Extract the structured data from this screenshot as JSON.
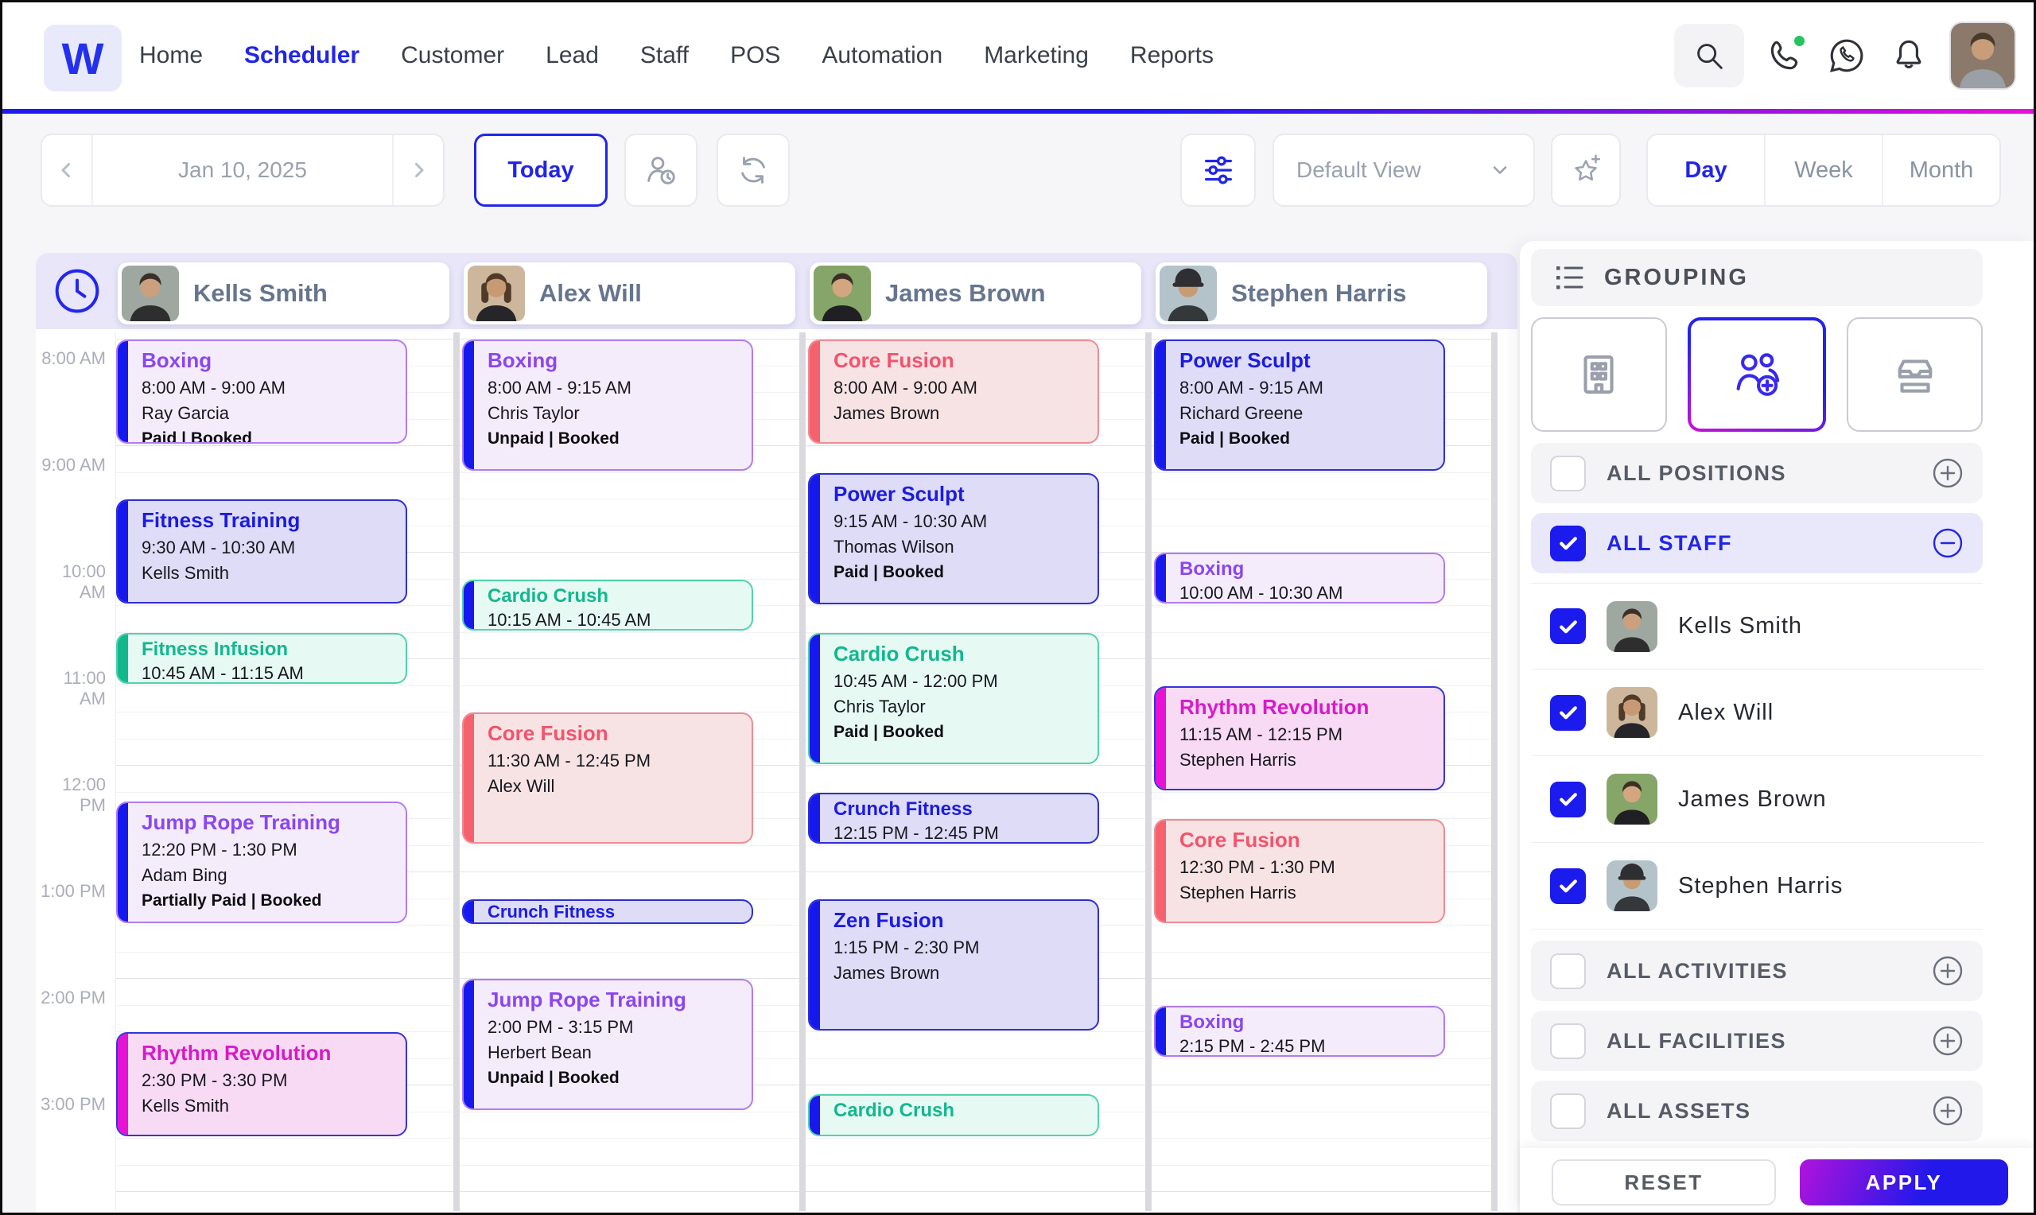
{
  "nav": {
    "logo_letter": "W",
    "items": [
      {
        "label": "Home",
        "active": false
      },
      {
        "label": "Scheduler",
        "active": true
      },
      {
        "label": "Customer",
        "active": false
      },
      {
        "label": "Lead",
        "active": false
      },
      {
        "label": "Staff",
        "active": false
      },
      {
        "label": "POS",
        "active": false
      },
      {
        "label": "Automation",
        "active": false
      },
      {
        "label": "Marketing",
        "active": false
      },
      {
        "label": "Reports",
        "active": false
      }
    ],
    "icons": [
      "search-icon",
      "phone-icon",
      "whatsapp-icon",
      "bell-icon"
    ],
    "accent_color": "#2125ea",
    "underline_gradient": [
      "#1c1cf2",
      "#8414e4",
      "#ec0edc"
    ]
  },
  "toolbar": {
    "date_label": "Jan 10, 2025",
    "today_label": "Today",
    "icon_buttons": [
      "staff-hours-icon",
      "refresh-icon",
      "filter-icon",
      "favorite-view-icon"
    ],
    "view_selector": {
      "value": "Default View"
    },
    "view_modes": [
      {
        "label": "Day",
        "active": true
      },
      {
        "label": "Week",
        "active": false
      },
      {
        "label": "Month",
        "active": false
      }
    ]
  },
  "scheduler": {
    "time_labels": [
      "8:00 AM",
      "9:00 AM",
      "10:00 AM",
      "11:00 AM",
      "12:00 PM",
      "1:00 PM",
      "2:00 PM",
      "3:00 PM"
    ],
    "event_colors": {
      "purple": {
        "bg": "#f5ecfb",
        "border": "#b27cee",
        "title": "#8a46f0",
        "bar": "#1618ee"
      },
      "blue": {
        "bg": "#dedcf6",
        "border": "#2e2ed8",
        "title": "#1b1be2",
        "bar": "#1618ee"
      },
      "teal": {
        "bg": "#e6faf3",
        "border": "#50d3ab",
        "title": "#13b78e",
        "bar": "#1618ee"
      },
      "teal_green": {
        "bg": "#e6faf3",
        "border": "#50d3ab",
        "title": "#13b78e",
        "bar": "#13b78e"
      },
      "red": {
        "bg": "#f7e3e3",
        "border": "#ef8b95",
        "title": "#f3536c",
        "bar": "#f6616e"
      },
      "pink": {
        "bg": "#f8daf4",
        "border": "#3434dc",
        "title": "#d81ac8",
        "bar": "#e612d4"
      }
    },
    "columns": [
      {
        "name": "Kells Smith",
        "avatar": {
          "bg": "#9fa8a0",
          "hair": "#3a3028",
          "skin": "#caa07e",
          "shirt": "#2e2e2e"
        },
        "events": [
          {
            "title": "Boxing",
            "time": "8:00 AM - 9:00 AM",
            "person": "Ray Garcia",
            "status": "Paid | Booked",
            "color": "purple",
            "start_min": 0,
            "dur_min": 60
          },
          {
            "title": "Fitness Training",
            "time": "9:30 AM - 10:30 AM",
            "person": "Kells Smith",
            "status": "",
            "color": "blue",
            "start_min": 90,
            "dur_min": 60
          },
          {
            "title": "Fitness Infusion",
            "time": "10:45 AM - 11:15 AM",
            "person": "",
            "status": "",
            "color": "teal_green",
            "start_min": 165,
            "dur_min": 30
          },
          {
            "title": "Jump Rope Training",
            "time": "12:20 PM - 1:30 PM",
            "person": "Adam Bing",
            "status": "Partially Paid | Booked",
            "color": "purple",
            "start_min": 260,
            "dur_min": 70
          },
          {
            "title": "Rhythm Revolution",
            "time": "2:30 PM - 3:30 PM",
            "person": "Kells Smith",
            "status": "",
            "color": "pink",
            "start_min": 390,
            "dur_min": 60
          }
        ]
      },
      {
        "name": "Alex Will",
        "avatar": {
          "bg": "#cdb79c",
          "hair": "#503a28",
          "skin": "#c89a74",
          "shirt": "#26262a",
          "long_hair": true
        },
        "events": [
          {
            "title": "Boxing",
            "time": "8:00 AM - 9:15 AM",
            "person": "Chris Taylor",
            "status": "Unpaid | Booked",
            "color": "purple",
            "start_min": 0,
            "dur_min": 75
          },
          {
            "title": "Cardio Crush",
            "time": "10:15 AM - 10:45 AM",
            "person": "",
            "status": "",
            "color": "teal",
            "start_min": 135,
            "dur_min": 30
          },
          {
            "title": "Core Fusion",
            "time": "11:30 AM - 12:45 PM",
            "person": "Alex Will",
            "status": "",
            "color": "red",
            "start_min": 210,
            "dur_min": 75
          },
          {
            "title": "Crunch Fitness",
            "time": "",
            "person": "",
            "status": "",
            "color": "blue",
            "start_min": 315,
            "dur_min": 15
          },
          {
            "title": "Jump Rope Training",
            "time": "2:00 PM - 3:15 PM",
            "person": "Herbert Bean",
            "status": "Unpaid | Booked",
            "color": "purple",
            "start_min": 360,
            "dur_min": 75
          }
        ]
      },
      {
        "name": "James Brown",
        "avatar": {
          "bg": "#86a569",
          "hair": "#3c3026",
          "skin": "#d4a67f",
          "shirt": "#202024"
        },
        "events": [
          {
            "title": "Core Fusion",
            "time": "8:00 AM - 9:00 AM",
            "person": "James Brown",
            "status": "",
            "color": "red",
            "start_min": 0,
            "dur_min": 60
          },
          {
            "title": "Power Sculpt",
            "time": "9:15 AM - 10:30 AM",
            "person": "Thomas Wilson",
            "status": "Paid | Booked",
            "color": "blue",
            "start_min": 75,
            "dur_min": 75
          },
          {
            "title": "Cardio Crush",
            "time": "10:45 AM - 12:00 PM",
            "person": "Chris Taylor",
            "status": "Paid | Booked",
            "color": "teal",
            "start_min": 165,
            "dur_min": 75
          },
          {
            "title": "Crunch Fitness",
            "time": "12:15 PM - 12:45 PM",
            "person": "",
            "status": "",
            "color": "blue",
            "start_min": 255,
            "dur_min": 30
          },
          {
            "title": "Zen Fusion",
            "time": "1:15 PM - 2:30 PM",
            "person": "James Brown",
            "status": "",
            "color": "blue",
            "start_min": 315,
            "dur_min": 75
          },
          {
            "title": "Cardio Crush",
            "time": "",
            "person": "",
            "status": "",
            "color": "teal",
            "start_min": 425,
            "dur_min": 25
          }
        ]
      },
      {
        "name": "Stephen Harris",
        "avatar": {
          "bg": "#b4c3c9",
          "hair": "#2f2f33",
          "skin": "#c79b73",
          "shirt": "#34383b",
          "cap": true
        },
        "events": [
          {
            "title": "Power Sculpt",
            "time": "8:00 AM - 9:15 AM",
            "person": "Richard Greene",
            "status": "Paid | Booked",
            "color": "blue",
            "start_min": 0,
            "dur_min": 75
          },
          {
            "title": "Boxing",
            "time": "10:00 AM - 10:30 AM",
            "person": "",
            "status": "",
            "color": "purple",
            "start_min": 120,
            "dur_min": 30
          },
          {
            "title": "Rhythm Revolution",
            "time": "11:15 AM - 12:15 PM",
            "person": "Stephen Harris",
            "status": "",
            "color": "pink",
            "start_min": 195,
            "dur_min": 60
          },
          {
            "title": "Core Fusion",
            "time": "12:30 PM - 1:30 PM",
            "person": "Stephen Harris",
            "status": "",
            "color": "red",
            "start_min": 270,
            "dur_min": 60
          },
          {
            "title": "Boxing",
            "time": "2:15 PM - 2:45 PM",
            "person": "",
            "status": "",
            "color": "purple",
            "start_min": 375,
            "dur_min": 30
          }
        ]
      }
    ]
  },
  "sidebar": {
    "grouping_label": "GROUPING",
    "group_buttons": [
      {
        "icon": "facilities-building-icon",
        "active": false
      },
      {
        "icon": "staff-group-icon",
        "active": true
      },
      {
        "icon": "assets-tray-icon",
        "active": false
      }
    ],
    "filter_rows_top": [
      {
        "label": "ALL POSITIONS",
        "checked": false,
        "expanded": false
      },
      {
        "label": "ALL STAFF",
        "checked": true,
        "expanded": true
      }
    ],
    "staff": [
      {
        "name": "Kells Smith",
        "checked": true
      },
      {
        "name": "Alex Will",
        "checked": true
      },
      {
        "name": "James Brown",
        "checked": true
      },
      {
        "name": "Stephen Harris",
        "checked": true
      }
    ],
    "filter_rows_bottom": [
      {
        "label": "ALL ACTIVITIES",
        "checked": false,
        "expanded": false
      },
      {
        "label": "ALL FACILITIES",
        "checked": false,
        "expanded": false
      },
      {
        "label": "ALL ASSETS",
        "checked": false,
        "expanded": false
      }
    ],
    "footer": {
      "reset_label": "RESET",
      "apply_label": "APPLY"
    },
    "checkbox_color": "#1b1bee"
  },
  "user_avatar": {
    "bg": "#8b7a6b",
    "hair": "#4a3a2c",
    "skin": "#c99d79",
    "shirt": "#9aa0a6"
  }
}
